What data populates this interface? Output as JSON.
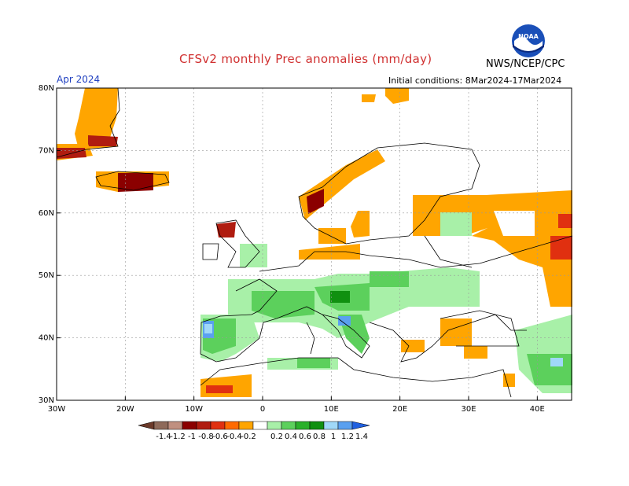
{
  "header": {
    "title": "CFSv2 monthly Prec anomalies (mm/day)",
    "org": "NWS/NCEP/CPC",
    "month": "Apr 2024",
    "initial_conditions": "Initial conditions: 8Mar2024-17Mar2024",
    "logo_text": "NOAA"
  },
  "map": {
    "lat_labels": [
      "80N",
      "70N",
      "60N",
      "50N",
      "40N",
      "30N"
    ],
    "lon_labels": [
      "30W",
      "20W",
      "10W",
      "0",
      "10E",
      "20E",
      "30E",
      "40E"
    ],
    "extent": {
      "lon": [
        -30,
        45
      ],
      "lat": [
        30,
        80
      ]
    },
    "grid": true,
    "colors": {
      "land_outline": "#000000",
      "grid": "#999999"
    }
  },
  "legend": {
    "labels": [
      "-1.4",
      "-1.2",
      "-1",
      "-0.8",
      "-0.6",
      "-0.4",
      "-0.2",
      "0.2",
      "0.4",
      "0.6",
      "0.8",
      "1",
      "1.2",
      "1.4"
    ],
    "colors": [
      "#6b3a2a",
      "#8e6a5a",
      "#c09080",
      "#8b0000",
      "#b01c10",
      "#e03010",
      "#ff6a00",
      "#ffa500",
      "#ffffff",
      "#a8f0a8",
      "#5cd05c",
      "#2ab02a",
      "#109010",
      "#a0d8f8",
      "#5aa0f0",
      "#2060e0"
    ]
  }
}
